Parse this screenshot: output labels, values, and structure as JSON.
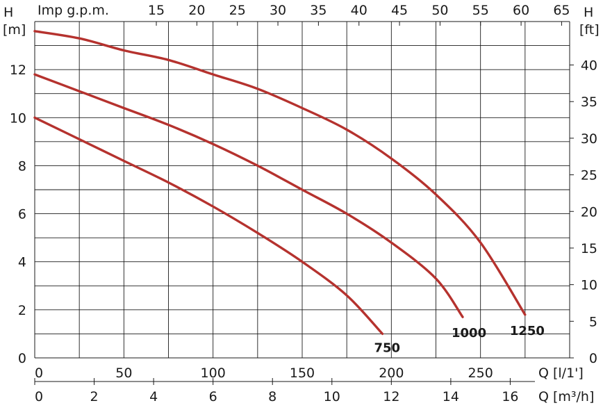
{
  "chart_data": {
    "type": "line",
    "title": "",
    "ylabel_left": "H",
    "ylabel_left_unit": "[m]",
    "ylabel_right": "H",
    "ylabel_right_unit": "[ft]",
    "xlabel_top": "Imp g.p.m.",
    "xlabel_bottom_1": "Q [l/1']",
    "xlabel_bottom_2": "Q [m³/h]",
    "ylim": [
      0,
      14
    ],
    "xlim": [
      0,
      300
    ],
    "grid": true,
    "y_ticks": [
      0,
      2,
      4,
      6,
      8,
      10,
      12
    ],
    "y_ft_ticks": [
      0,
      5,
      10,
      15,
      20,
      25,
      30,
      35,
      40
    ],
    "x_ticks_lpm": [
      0,
      50,
      100,
      150,
      200,
      250
    ],
    "x_ticks_m3h": [
      0,
      2,
      4,
      6,
      8,
      10,
      12,
      14,
      16
    ],
    "x_ticks_gpm": [
      15,
      20,
      25,
      30,
      35,
      40,
      45,
      50,
      55,
      60,
      65
    ],
    "series": [
      {
        "name": "750",
        "color": "#b5322e",
        "x": [
          0,
          25,
          50,
          75,
          100,
          125,
          150,
          175,
          195
        ],
        "y": [
          10,
          9.1,
          8.2,
          7.3,
          6.3,
          5.2,
          4.0,
          2.6,
          1.0
        ]
      },
      {
        "name": "1000",
        "color": "#b5322e",
        "x": [
          0,
          25,
          50,
          75,
          100,
          125,
          150,
          175,
          200,
          225,
          240
        ],
        "y": [
          11.8,
          11.1,
          10.4,
          9.7,
          8.9,
          8.0,
          7.0,
          6.0,
          4.8,
          3.3,
          1.7
        ]
      },
      {
        "name": "1250",
        "color": "#b5322e",
        "x": [
          0,
          25,
          50,
          75,
          100,
          125,
          150,
          175,
          200,
          225,
          250,
          275
        ],
        "y": [
          13.6,
          13.3,
          12.8,
          12.4,
          11.8,
          11.2,
          10.4,
          9.5,
          8.3,
          6.8,
          4.8,
          1.8
        ]
      }
    ]
  }
}
